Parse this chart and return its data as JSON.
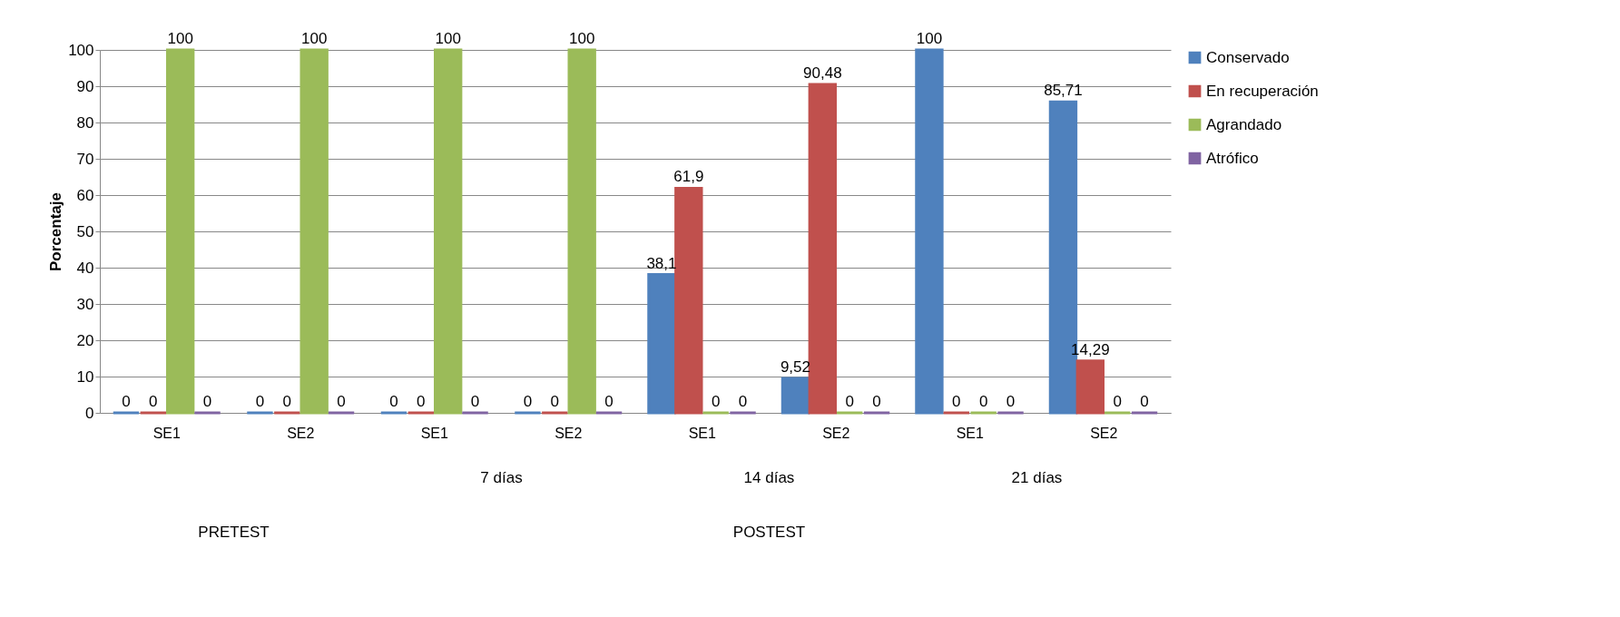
{
  "chart_data": {
    "type": "bar",
    "ylabel": "Porcentaje",
    "categories": [
      "SE1",
      "SE2",
      "SE1",
      "SE2",
      "SE1",
      "SE2",
      "SE1",
      "SE2"
    ],
    "series": [
      {
        "name": "Conservado",
        "color": "#4f81bd",
        "values": [
          0,
          0,
          0,
          0,
          38.1,
          9.52,
          100,
          85.71
        ],
        "value_labels": [
          "0",
          "0",
          "0",
          "0",
          "38,1",
          "9,52",
          "100",
          "85,71"
        ]
      },
      {
        "name": "En recuperación",
        "color": "#c0504d",
        "values": [
          0,
          0,
          0,
          0,
          61.9,
          90.48,
          0,
          14.29
        ],
        "value_labels": [
          "0",
          "0",
          "0",
          "0",
          "61,9",
          "90,48",
          "0",
          "14,29"
        ]
      },
      {
        "name": "Agrandado",
        "color": "#9bbb59",
        "values": [
          100,
          100,
          100,
          100,
          0,
          0,
          0,
          0
        ],
        "value_labels": [
          "100",
          "100",
          "100",
          "100",
          "0",
          "0",
          "0",
          "0"
        ]
      },
      {
        "name": "Atrófico",
        "color": "#8064a2",
        "values": [
          0,
          0,
          0,
          0,
          0,
          0,
          0,
          0
        ],
        "value_labels": [
          "0",
          "0",
          "0",
          "0",
          "0",
          "0",
          "0",
          "0"
        ]
      }
    ],
    "annotations": [
      "PRETEST",
      "POSTEST",
      "7 días",
      "14 días",
      "21 días"
    ],
    "ylim": [
      0,
      100
    ],
    "yticks": [
      0,
      10,
      20,
      30,
      40,
      50,
      60,
      70,
      80,
      90,
      100
    ],
    "grid": "y",
    "legend": "right"
  }
}
